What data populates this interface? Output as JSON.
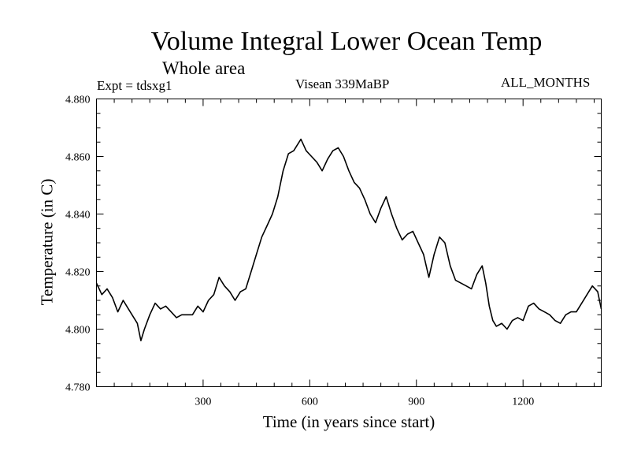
{
  "chart_data": {
    "type": "line",
    "title": "Volume Integral Lower Ocean Temp",
    "subtitle": "Whole area",
    "expt_label": "Expt = tdsxg1",
    "center_label": "Visean 339MaBP",
    "right_label": "ALL_MONTHS",
    "xlabel": "Time (in years since start)",
    "ylabel": "Temperature (in C)",
    "xlim": [
      0,
      1420
    ],
    "ylim": [
      4.78,
      4.88
    ],
    "xticks": [
      300,
      600,
      900,
      1200
    ],
    "xtick_labels": [
      "300",
      "600",
      "900",
      "1200"
    ],
    "yticks": [
      4.78,
      4.8,
      4.82,
      4.84,
      4.86,
      4.88
    ],
    "ytick_labels": [
      "4.780",
      "4.800",
      "4.820",
      "4.840",
      "4.860",
      "4.880"
    ],
    "grid": false,
    "series": [
      {
        "name": "Temperature",
        "color": "#000000",
        "x": [
          0,
          15,
          30,
          45,
          60,
          75,
          90,
          105,
          115,
          125,
          135,
          150,
          165,
          180,
          195,
          210,
          225,
          240,
          255,
          270,
          285,
          300,
          315,
          330,
          345,
          360,
          375,
          390,
          405,
          420,
          435,
          450,
          465,
          480,
          495,
          510,
          525,
          540,
          555,
          565,
          575,
          590,
          605,
          620,
          635,
          650,
          665,
          680,
          695,
          710,
          725,
          740,
          755,
          770,
          785,
          800,
          815,
          830,
          845,
          860,
          875,
          890,
          905,
          920,
          935,
          950,
          965,
          980,
          995,
          1010,
          1025,
          1040,
          1055,
          1070,
          1085,
          1095,
          1105,
          1115,
          1125,
          1140,
          1155,
          1170,
          1185,
          1200,
          1215,
          1230,
          1245,
          1260,
          1275,
          1290,
          1305,
          1320,
          1335,
          1350,
          1365,
          1380,
          1395,
          1410,
          1420
        ],
        "values": [
          4.816,
          4.812,
          4.814,
          4.811,
          4.806,
          4.81,
          4.807,
          4.804,
          4.802,
          4.796,
          4.8,
          4.805,
          4.809,
          4.807,
          4.808,
          4.806,
          4.804,
          4.805,
          4.805,
          4.805,
          4.808,
          4.806,
          4.81,
          4.812,
          4.818,
          4.815,
          4.813,
          4.81,
          4.813,
          4.814,
          4.82,
          4.826,
          4.832,
          4.836,
          4.84,
          4.846,
          4.855,
          4.861,
          4.862,
          4.864,
          4.866,
          4.862,
          4.86,
          4.858,
          4.855,
          4.859,
          4.862,
          4.863,
          4.86,
          4.855,
          4.851,
          4.849,
          4.845,
          4.84,
          4.837,
          4.842,
          4.846,
          4.84,
          4.835,
          4.831,
          4.833,
          4.834,
          4.83,
          4.826,
          4.818,
          4.826,
          4.832,
          4.83,
          4.822,
          4.817,
          4.816,
          4.815,
          4.814,
          4.819,
          4.822,
          4.816,
          4.808,
          4.803,
          4.801,
          4.802,
          4.8,
          4.803,
          4.804,
          4.803,
          4.808,
          4.809,
          4.807,
          4.806,
          4.805,
          4.803,
          4.802,
          4.805,
          4.806,
          4.806,
          4.809,
          4.812,
          4.815,
          4.813,
          4.807
        ]
      }
    ]
  }
}
